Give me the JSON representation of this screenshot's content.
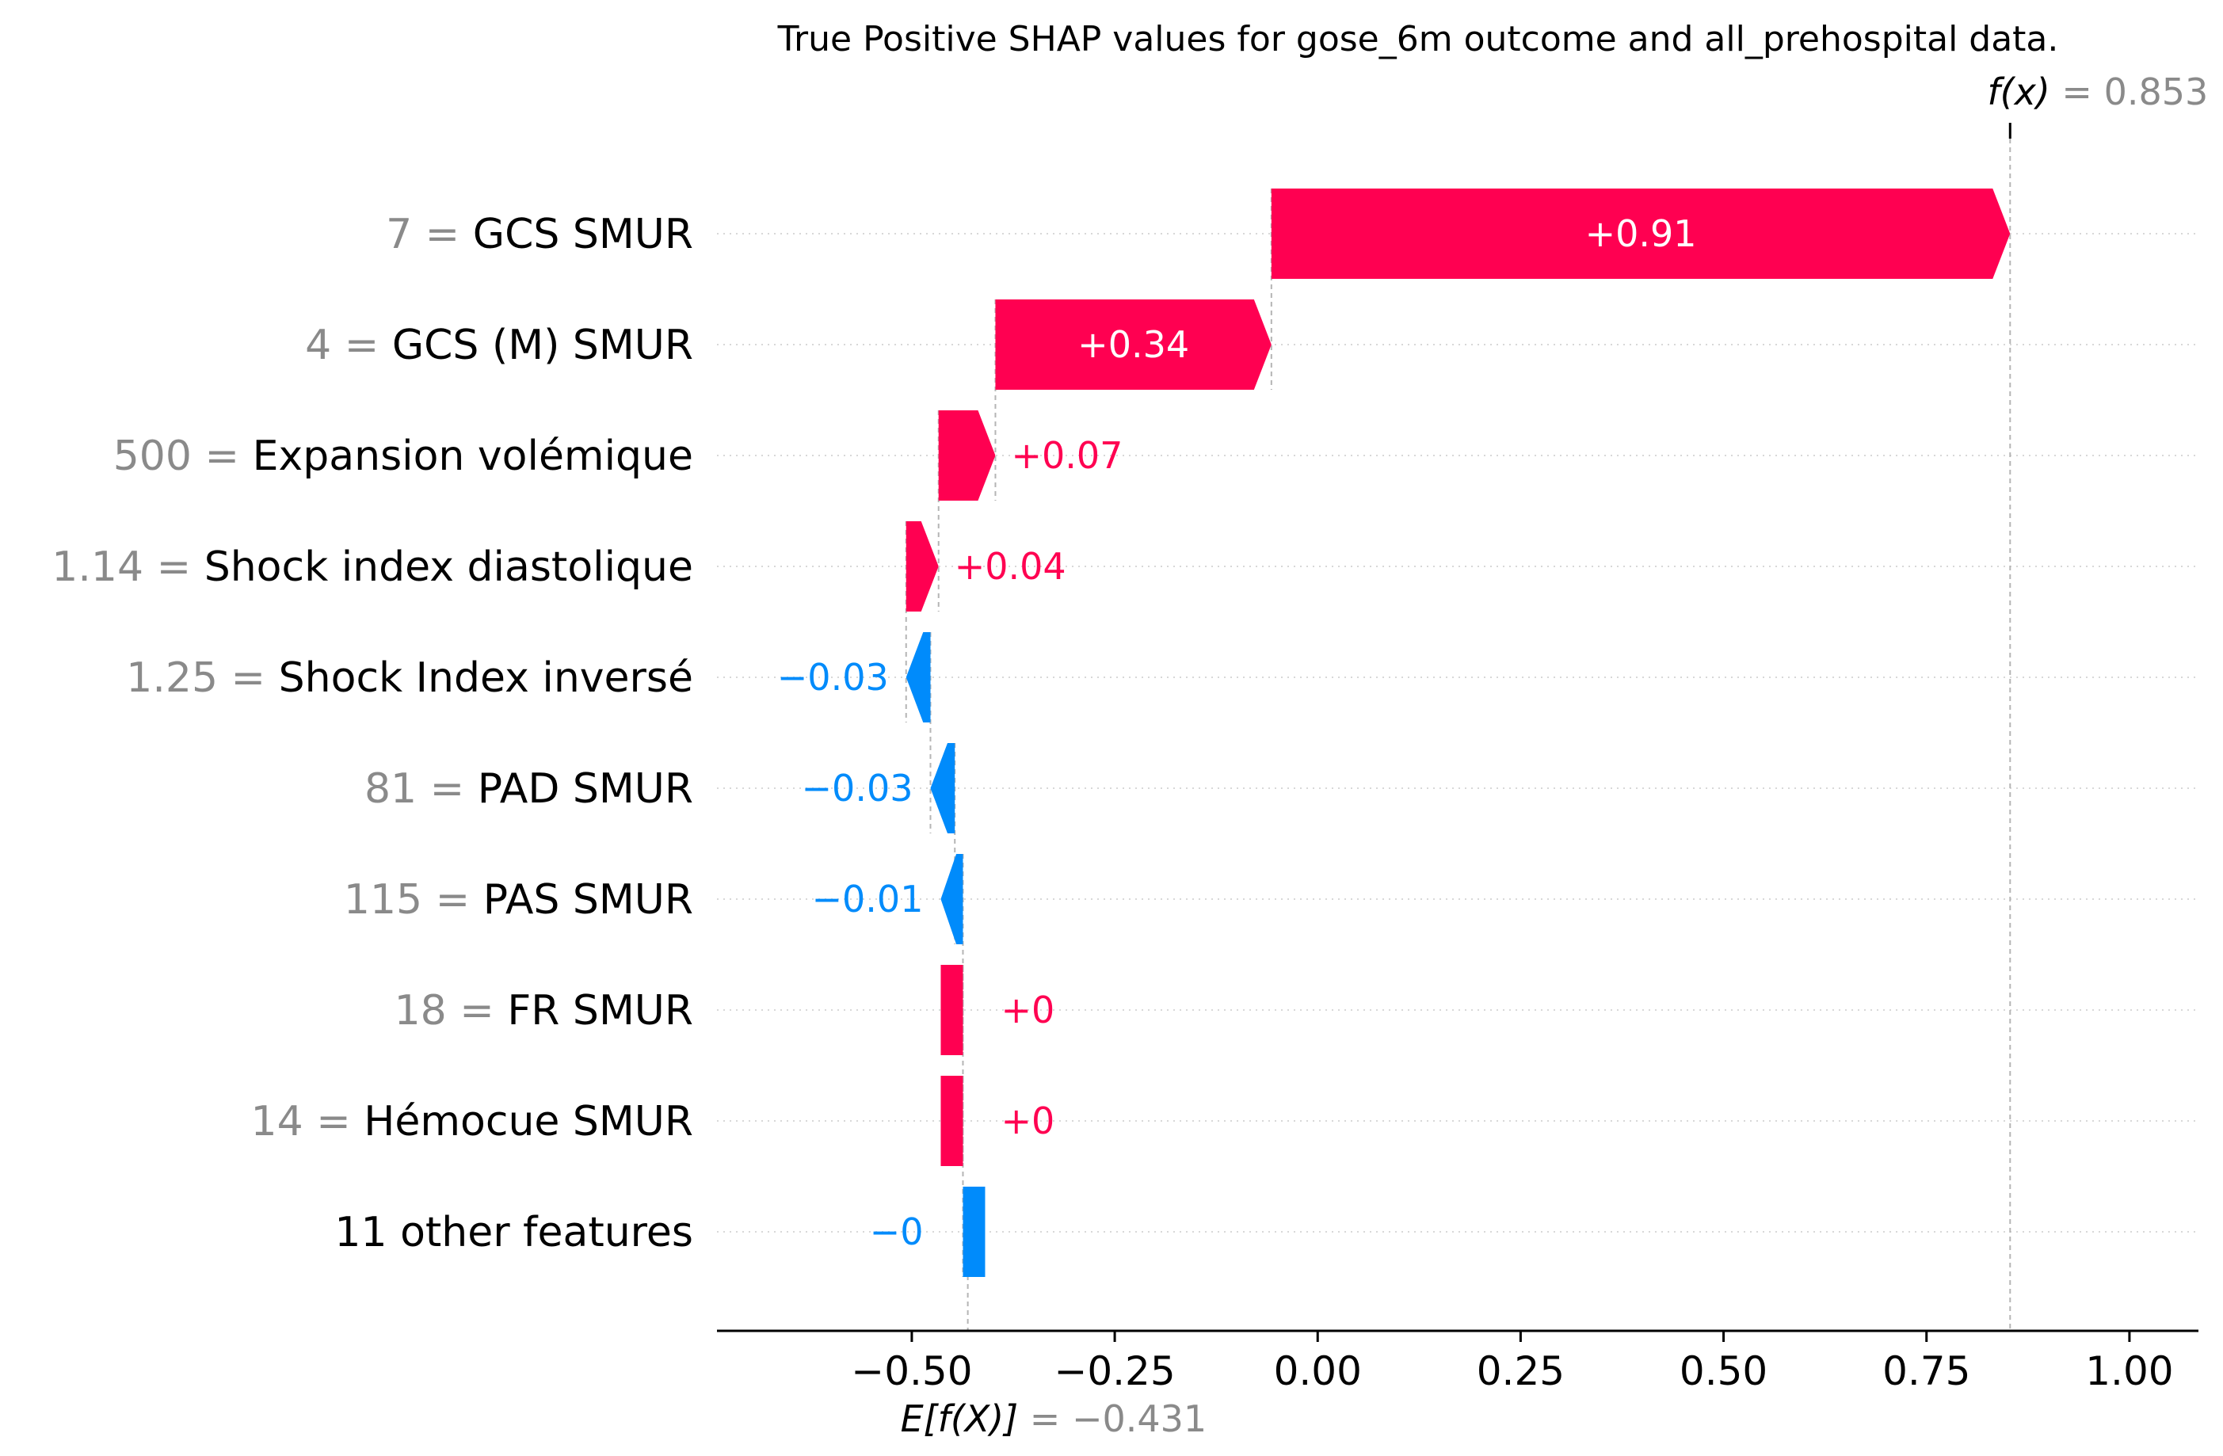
{
  "chart_data": {
    "type": "waterfall",
    "title": "True Positive SHAP values for gose_6m outcome and all_prehospital data.",
    "base_value": -0.431,
    "base_value_label": "E[f(X)]",
    "base_value_text": "= −0.431",
    "output_value": 0.853,
    "output_value_label": "f(x)",
    "output_value_text": "= 0.853",
    "x_ticks": [
      -0.5,
      -0.25,
      0.0,
      0.25,
      0.5,
      0.75,
      1.0
    ],
    "x_tick_labels": [
      "−0.50",
      "−0.25",
      "0.00",
      "0.25",
      "0.50",
      "0.75",
      "1.00"
    ],
    "xlim": [
      -0.74,
      1.085
    ],
    "positive_color": "#ff0051",
    "negative_color": "#008bfb",
    "features": [
      {
        "value": "7",
        "name": "GCS SMUR ",
        "shap": 0.91,
        "label": "+0.91"
      },
      {
        "value": "4",
        "name": "GCS (M) SMUR ",
        "shap": 0.34,
        "label": "+0.34"
      },
      {
        "value": "500",
        "name": "Expansion volémique",
        "shap": 0.07,
        "label": "+0.07"
      },
      {
        "value": "1.14",
        "name": "Shock index diastolique",
        "shap": 0.04,
        "label": "+0.04"
      },
      {
        "value": "1.25",
        "name": "Shock Index inversé",
        "shap": -0.03,
        "label": "−0.03"
      },
      {
        "value": "81",
        "name": "PAD  SMUR ",
        "shap": -0.03,
        "label": "−0.03"
      },
      {
        "value": "115",
        "name": "PAS  SMUR ",
        "shap": -0.01,
        "label": "−0.01"
      },
      {
        "value": "18",
        "name": "FR SMUR",
        "shap": 0.0,
        "label": "+0"
      },
      {
        "value": "14",
        "name": "Hémocue SMUR ",
        "shap": 0.0,
        "label": "+0"
      },
      {
        "value": "",
        "name": "11 other features",
        "shap": -0.0,
        "label": "−0"
      }
    ]
  }
}
